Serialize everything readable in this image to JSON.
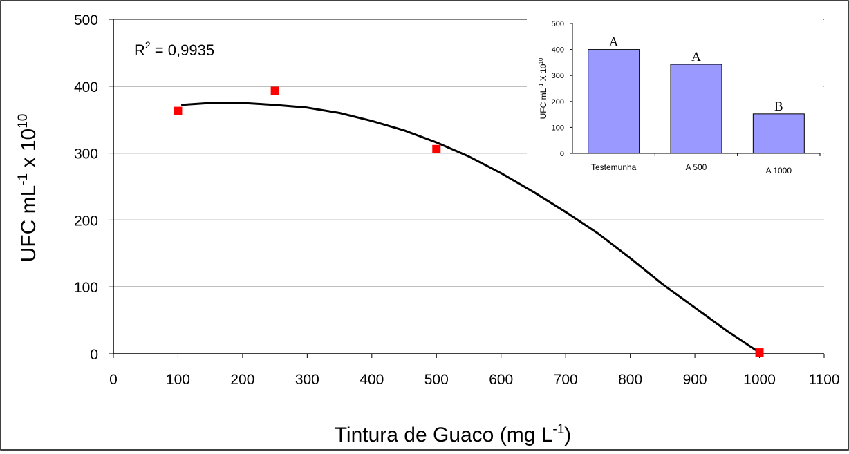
{
  "chart_data": [
    {
      "type": "scatter",
      "annotation": {
        "base": "R",
        "sup": "2",
        "rest": " = 0,9935"
      },
      "xlabel": {
        "base": "Tintura de Guaco (mg L",
        "sup": "-1",
        "tail": ")"
      },
      "ylabel": {
        "base": "UFC mL",
        "sup1": "-1",
        "mid": " x 10",
        "sup2": "10"
      },
      "xlim": [
        0,
        1100
      ],
      "ylim": [
        0,
        500
      ],
      "x_ticks": [
        "0",
        "100",
        "200",
        "300",
        "400",
        "500",
        "600",
        "700",
        "800",
        "900",
        "1000",
        "1100"
      ],
      "y_ticks": [
        "0",
        "100",
        "200",
        "300",
        "400",
        "500"
      ],
      "grid": "horizontal",
      "series": [
        {
          "kind": "points",
          "color": "#ff0000",
          "x": [
            100,
            250,
            500,
            1000
          ],
          "y": [
            363,
            393,
            306,
            2
          ]
        },
        {
          "kind": "fit",
          "color": "#000000",
          "x": [
            105,
            150,
            200,
            250,
            300,
            350,
            400,
            450,
            500,
            550,
            600,
            650,
            700,
            750,
            800,
            850,
            900,
            950,
            1000
          ],
          "y": [
            372,
            375,
            375,
            372,
            368,
            360,
            348,
            334,
            316,
            295,
            270,
            242,
            212,
            180,
            143,
            104,
            69,
            34,
            2
          ]
        }
      ]
    },
    {
      "type": "bar",
      "categories": [
        "Testemunha",
        "A 500",
        "A 1000"
      ],
      "values": [
        400,
        343,
        152
      ],
      "bar_labels": [
        "A",
        "A",
        "B"
      ],
      "color": "#9999ff",
      "ylim": [
        0,
        500
      ],
      "y_ticks": [
        "0",
        "100",
        "200",
        "300",
        "400",
        "500"
      ],
      "ylabel": {
        "base": "UFC mL",
        "sup1": "-1",
        "mid": " X 10",
        "sup2": "10"
      }
    }
  ]
}
